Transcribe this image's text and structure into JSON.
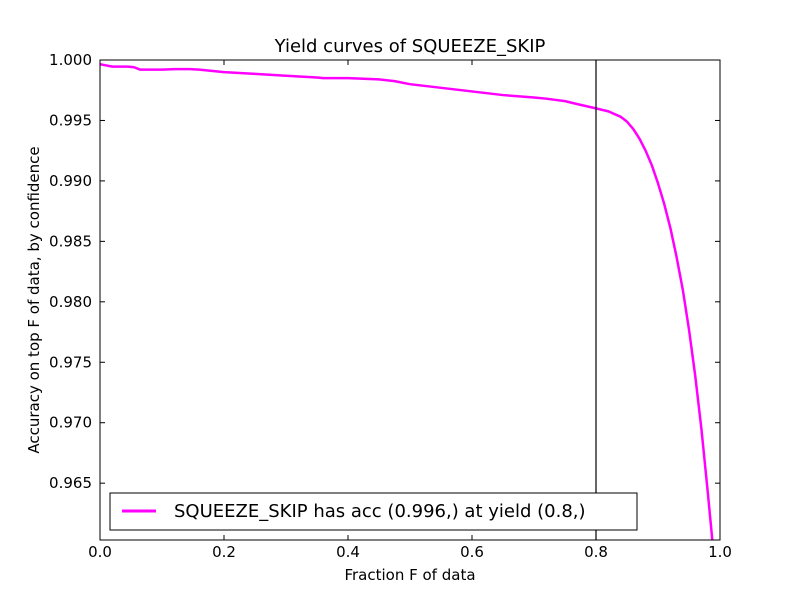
{
  "chart_data": {
    "type": "line",
    "title": "Yield curves of SQUEEZE_SKIP",
    "xlabel": "Fraction F of data",
    "ylabel": "Accuracy on top F of data, by confidence",
    "xlim": [
      0.0,
      1.0
    ],
    "ylim": [
      0.9603,
      1.0
    ],
    "x_ticks": [
      "0.0",
      "0.2",
      "0.4",
      "0.6",
      "0.8",
      "1.0"
    ],
    "y_ticks": [
      "1.000",
      "0.995",
      "0.990",
      "0.985",
      "0.980",
      "0.975",
      "0.970",
      "0.965"
    ],
    "grid": false,
    "legend_position": "lower-left",
    "vline_x": 0.8,
    "series": [
      {
        "name": "SQUEEZE_SKIP has acc (0.996,) at yield (0.8,)",
        "color": "#ff00ff",
        "x": [
          0.0,
          0.01,
          0.02,
          0.03,
          0.045,
          0.055,
          0.065,
          0.08,
          0.1,
          0.12,
          0.145,
          0.16,
          0.2,
          0.25,
          0.3,
          0.35,
          0.36,
          0.4,
          0.45,
          0.475,
          0.5,
          0.55,
          0.6,
          0.65,
          0.7,
          0.72,
          0.75,
          0.77,
          0.8,
          0.82,
          0.84,
          0.85,
          0.86,
          0.87,
          0.88,
          0.89,
          0.9,
          0.91,
          0.92,
          0.93,
          0.94,
          0.95,
          0.96,
          0.97,
          0.98,
          0.99,
          1.0
        ],
        "y": [
          0.99965,
          0.99955,
          0.99945,
          0.99945,
          0.99945,
          0.9994,
          0.9992,
          0.9992,
          0.9992,
          0.99925,
          0.99925,
          0.9992,
          0.999,
          0.99885,
          0.9987,
          0.99855,
          0.9985,
          0.9985,
          0.9984,
          0.99825,
          0.998,
          0.9977,
          0.9974,
          0.9971,
          0.9969,
          0.9968,
          0.9966,
          0.99635,
          0.996,
          0.99575,
          0.9953,
          0.9949,
          0.9943,
          0.9935,
          0.9925,
          0.9913,
          0.9898,
          0.9881,
          0.9861,
          0.9837,
          0.981,
          0.9777,
          0.9739,
          0.9695,
          0.9644,
          0.959,
          0.953
        ]
      }
    ]
  }
}
